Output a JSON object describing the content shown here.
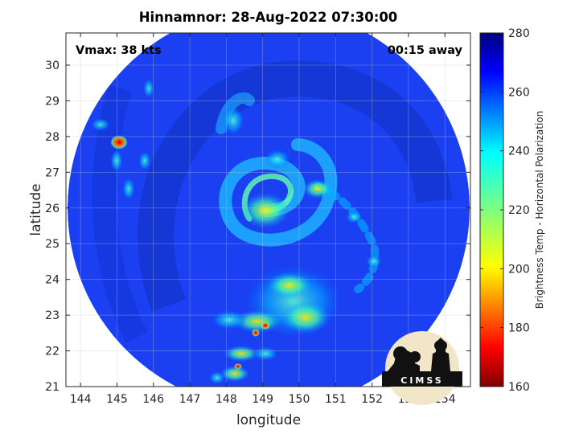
{
  "title": "Hinnamnor: 28-Aug-2022 07:30:00",
  "annotations": {
    "vmax": "Vmax: 38 kts",
    "time_away": "00:15 away"
  },
  "logo": {
    "text": "CIMSS"
  },
  "chart_data": {
    "type": "heatmap",
    "title": "Hinnamnor: 28-Aug-2022 07:30:00",
    "xlabel": "longitude",
    "ylabel": "latitude",
    "xlim": [
      143.6,
      154.7
    ],
    "ylim": [
      21,
      30.9
    ],
    "xticks": [
      144,
      145,
      146,
      147,
      148,
      149,
      150,
      151,
      152,
      153,
      154
    ],
    "yticks": [
      21,
      22,
      23,
      24,
      25,
      26,
      27,
      28,
      29,
      30
    ],
    "grid": true,
    "colorbar": {
      "label": "Brightness Temp - Horizontal Polarization",
      "range": [
        160,
        280
      ],
      "ticks": [
        160,
        180,
        200,
        220,
        240,
        260,
        280
      ],
      "colormap": "jet"
    },
    "swath": {
      "type": "circle",
      "center": [
        149.1,
        26.0
      ],
      "radius_deg_lon": 5.45,
      "radius_deg_lat": 5.6,
      "background_value": 262
    },
    "features": [
      {
        "name": "spiral-band",
        "lon": [
          149.0,
          149.9,
          150.2,
          149.6,
          148.8,
          148.4,
          148.9,
          149.8,
          150.6,
          150.2
        ],
        "lat": [
          25.8,
          25.7,
          26.4,
          27.1,
          26.8,
          26.0,
          25.3,
          25.2,
          26.2,
          27.4
        ],
        "value": 225
      },
      {
        "name": "eye-wall-core",
        "lon": [
          149.0,
          149.4,
          149.2
        ],
        "lat": [
          26.0,
          25.6,
          26.3
        ],
        "value": 215
      },
      {
        "name": "convective-cluster-south",
        "lon": [
          148.3,
          148.8,
          149.3,
          149.8,
          150.3,
          149.1,
          148.5
        ],
        "lat": [
          23.6,
          23.3,
          22.9,
          23.0,
          23.5,
          24.1,
          22.6
        ],
        "value": 215
      },
      {
        "name": "cold-spot-north",
        "lon": [
          145.0
        ],
        "lat": [
          27.9
        ],
        "value": 175
      },
      {
        "name": "rainband-southwest",
        "lon": [
          147.9,
          148.1,
          148.3,
          148.6
        ],
        "lat": [
          22.0,
          21.6,
          21.3,
          22.3
        ],
        "value": 210
      }
    ]
  }
}
